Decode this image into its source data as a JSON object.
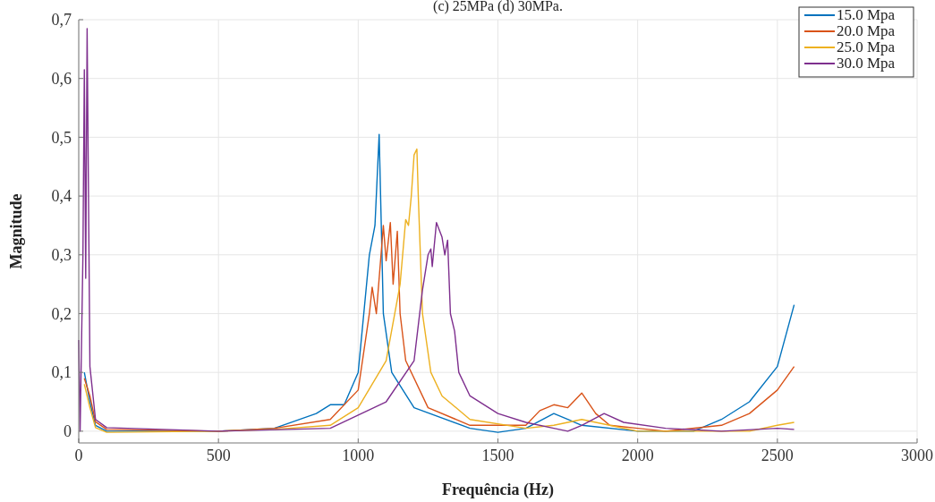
{
  "chart_data": {
    "type": "line",
    "title": "(c) 25MPa (d) 30MPa.",
    "xlabel": "Frequência (Hz)",
    "ylabel": "Magnitude",
    "xlim": [
      0,
      3000
    ],
    "xticks": [
      0,
      500,
      1000,
      1500,
      2000,
      2500,
      3000
    ],
    "ylim": [
      -0.02,
      0.7
    ],
    "yticks": [
      0,
      {
        "value": 0.1,
        "label": "0,1"
      },
      {
        "value": 0.2,
        "label": "0,2"
      },
      {
        "value": 0.3,
        "label": "0,3"
      },
      {
        "value": 0.4,
        "label": "0,4"
      },
      {
        "value": 0.5,
        "label": "0,5"
      },
      {
        "value": 0.6,
        "label": "0,6"
      },
      {
        "value": 0.7,
        "label": "0,7"
      }
    ],
    "grid": true,
    "legend": "top right",
    "line_style": "solid",
    "series": [
      {
        "name": "15.0 Mpa",
        "color": "#0072bd",
        "x": [
          20,
          40,
          60,
          100,
          500,
          700,
          850,
          900,
          950,
          1000,
          1040,
          1060,
          1075,
          1090,
          1120,
          1200,
          1400,
          1500,
          1600,
          1700,
          1750,
          1800,
          2000,
          2200,
          2300,
          2400,
          2500,
          2560
        ],
        "values": [
          0.1,
          0.05,
          0.01,
          0,
          0,
          0.005,
          0.03,
          0.045,
          0.045,
          0.1,
          0.3,
          0.35,
          0.505,
          0.2,
          0.1,
          0.04,
          0.005,
          -0.002,
          0.005,
          0.03,
          0.02,
          0.01,
          0,
          0,
          0.02,
          0.05,
          0.11,
          0.215
        ]
      },
      {
        "name": "20.0 Mpa",
        "color": "#d95319",
        "x": [
          20,
          40,
          60,
          100,
          500,
          700,
          900,
          1000,
          1040,
          1050,
          1065,
          1090,
          1100,
          1115,
          1125,
          1140,
          1150,
          1170,
          1250,
          1400,
          1600,
          1650,
          1700,
          1750,
          1800,
          1850,
          1900,
          2000,
          2100,
          2300,
          2400,
          2500,
          2560
        ],
        "values": [
          0.09,
          0.06,
          0.016,
          0.003,
          0,
          0.005,
          0.02,
          0.07,
          0.2,
          0.245,
          0.2,
          0.35,
          0.29,
          0.355,
          0.25,
          0.34,
          0.2,
          0.12,
          0.04,
          0.01,
          0.01,
          0.035,
          0.045,
          0.04,
          0.065,
          0.03,
          0.01,
          0.005,
          0,
          0.01,
          0.03,
          0.07,
          0.11
        ]
      },
      {
        "name": "25.0 Mpa",
        "color": "#edb120",
        "x": [
          20,
          40,
          60,
          100,
          500,
          700,
          900,
          1000,
          1100,
          1150,
          1170,
          1180,
          1190,
          1200,
          1210,
          1215,
          1230,
          1260,
          1300,
          1400,
          1600,
          1700,
          1800,
          1900,
          2000,
          2400,
          2500,
          2560
        ],
        "values": [
          0.08,
          0.04,
          0.006,
          -0.002,
          0,
          0.003,
          0.01,
          0.04,
          0.12,
          0.25,
          0.36,
          0.35,
          0.4,
          0.47,
          0.48,
          0.4,
          0.2,
          0.1,
          0.06,
          0.02,
          0.005,
          0.01,
          0.02,
          0.01,
          0,
          0,
          0.01,
          0.015
        ]
      },
      {
        "name": "30.0 Mpa",
        "color": "#7e2f8e",
        "x": [
          0,
          5,
          15,
          20,
          25,
          30,
          40,
          60,
          100,
          500,
          900,
          1100,
          1200,
          1230,
          1250,
          1260,
          1265,
          1280,
          1300,
          1310,
          1320,
          1330,
          1345,
          1360,
          1400,
          1500,
          1600,
          1700,
          1750,
          1800,
          1880,
          1950,
          2100,
          2300,
          2500,
          2560
        ],
        "values": [
          0.155,
          0,
          0.3,
          0.615,
          0.26,
          0.685,
          0.11,
          0.02,
          0.006,
          0,
          0.005,
          0.05,
          0.12,
          0.24,
          0.3,
          0.31,
          0.28,
          0.355,
          0.33,
          0.3,
          0.325,
          0.2,
          0.17,
          0.1,
          0.06,
          0.03,
          0.015,
          0.005,
          0,
          0.01,
          0.03,
          0.015,
          0.005,
          0,
          0.005,
          0.003
        ]
      }
    ]
  }
}
